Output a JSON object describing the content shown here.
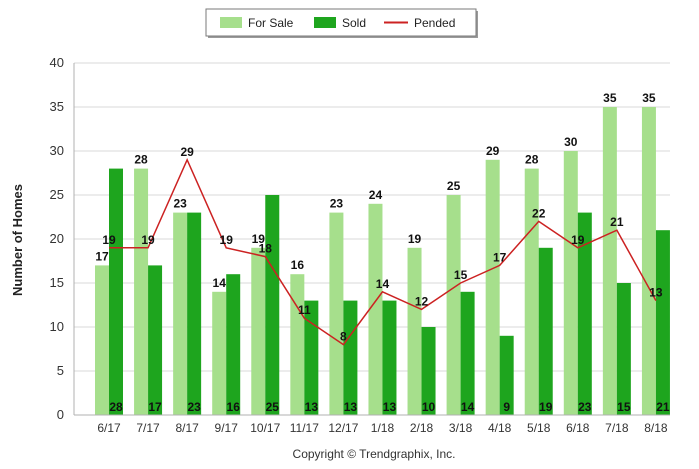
{
  "chart_data": {
    "type": "bar",
    "categories": [
      "6/17",
      "7/17",
      "8/17",
      "9/17",
      "10/17",
      "11/17",
      "12/17",
      "1/18",
      "2/18",
      "3/18",
      "4/18",
      "5/18",
      "6/18",
      "7/18",
      "8/18"
    ],
    "series": [
      {
        "name": "For Sale",
        "type": "bar",
        "color": "#a6df8c",
        "values": [
          17,
          28,
          23,
          14,
          19,
          16,
          23,
          24,
          19,
          25,
          29,
          28,
          30,
          35,
          35
        ]
      },
      {
        "name": "Sold",
        "type": "bar",
        "color": "#1ea51e",
        "values": [
          28,
          17,
          23,
          16,
          25,
          13,
          13,
          13,
          10,
          14,
          9,
          19,
          23,
          15,
          21
        ]
      },
      {
        "name": "Pended",
        "type": "line",
        "color": "#cc2222",
        "values": [
          19,
          19,
          29,
          19,
          18,
          11,
          8,
          14,
          12,
          15,
          17,
          22,
          19,
          21,
          13
        ]
      }
    ],
    "ylabel": "Number of Homes",
    "xlabel": "",
    "ylim": [
      0,
      40
    ],
    "yticks": [
      0,
      5,
      10,
      15,
      20,
      25,
      30,
      35,
      40
    ],
    "grid": true,
    "legend": "top-center"
  },
  "footer": {
    "copyright": "Copyright © Trendgraphix, Inc."
  }
}
